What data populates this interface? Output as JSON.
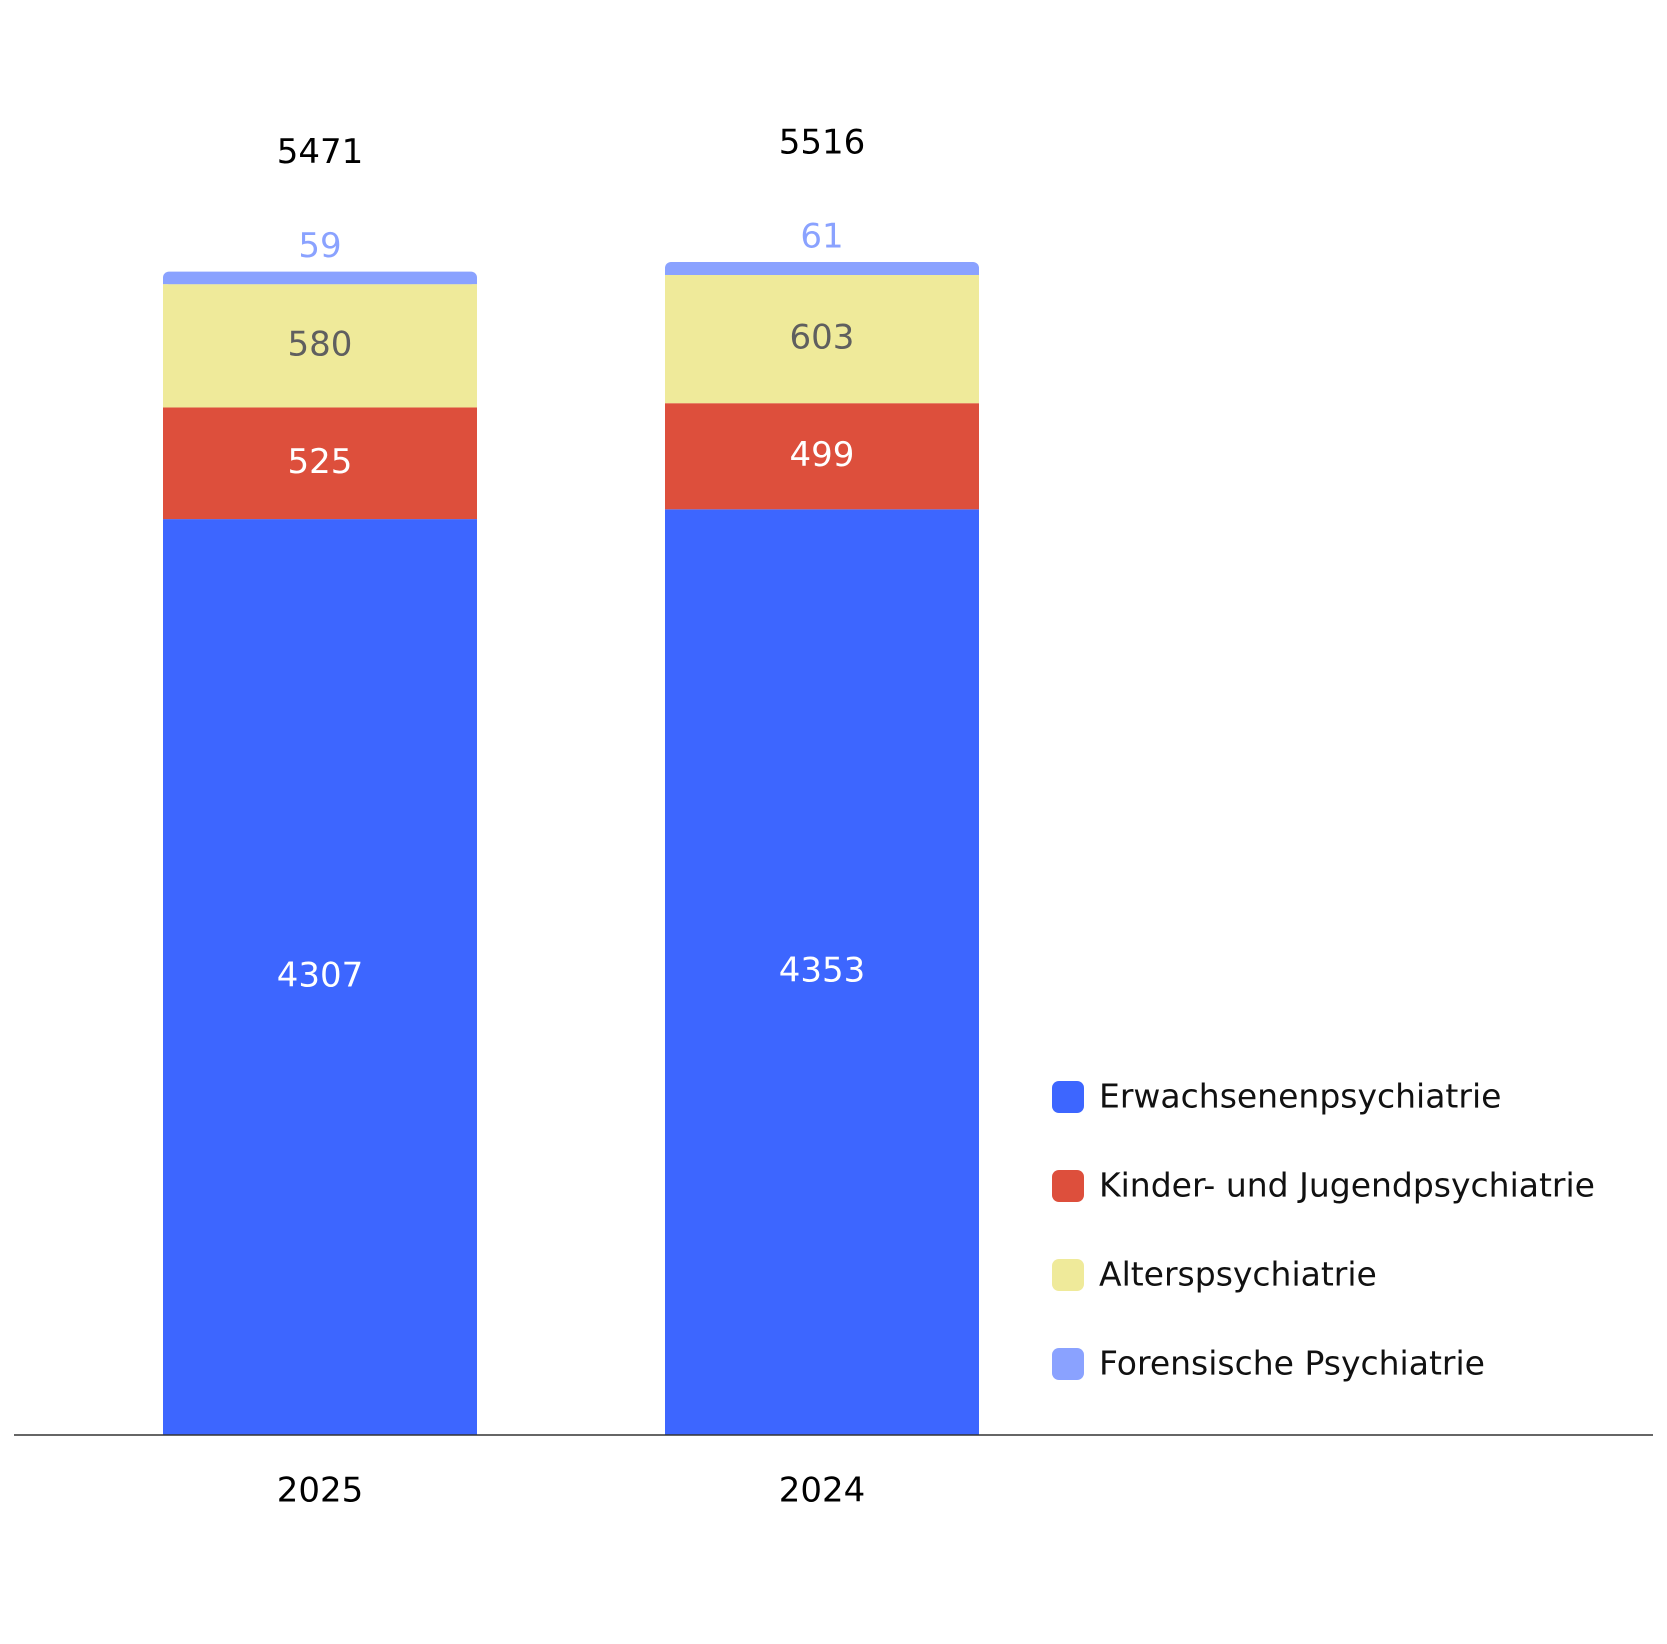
{
  "chart_data": {
    "type": "bar",
    "stacked": true,
    "categories": [
      "2025",
      "2024"
    ],
    "totals": [
      5471,
      5516
    ],
    "series": [
      {
        "name": "Erwachsenenpsychiatrie",
        "values": [
          4307,
          4353
        ],
        "color": "#3d66ff",
        "label_color": "#ffffff"
      },
      {
        "name": "Kinder- und Jugendpsychiatrie",
        "values": [
          525,
          499
        ],
        "color": "#dd4f3c",
        "label_color": "#ffffff"
      },
      {
        "name": "Alterspsychiatrie",
        "values": [
          580,
          603
        ],
        "color": "#efea9a",
        "label_color": "#5f5f5f"
      },
      {
        "name": "Forensische Psychiatrie",
        "values": [
          59,
          61
        ],
        "color": "#8aa2ff",
        "label_color": "#8aa2ff"
      }
    ],
    "ylim": [
      0,
      5516
    ],
    "grid": false,
    "legend": "right"
  }
}
